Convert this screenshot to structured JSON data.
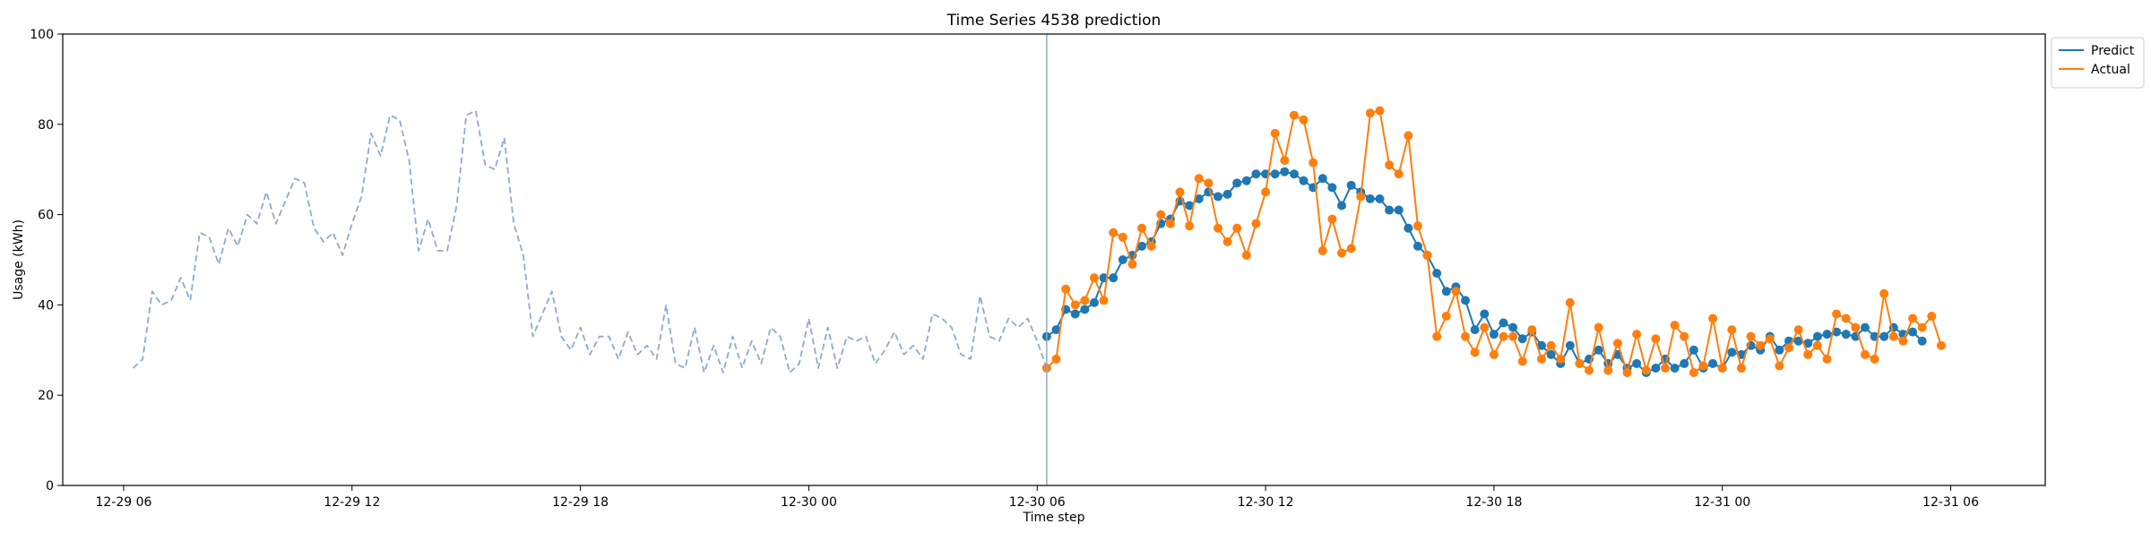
{
  "chart_data": {
    "type": "line",
    "title": "Time Series 4538 prediction",
    "xlabel": "Time step",
    "ylabel": "Usage (kWh)",
    "ylim": [
      0,
      100
    ],
    "yticks": [
      0,
      20,
      40,
      60,
      80,
      100
    ],
    "xlim": [
      "2023-12-29 04:24",
      "2023-12-31 08:29"
    ],
    "xticks": [
      {
        "t": "2023-12-29 06:00",
        "label": "12-29 06"
      },
      {
        "t": "2023-12-29 12:00",
        "label": "12-29 12"
      },
      {
        "t": "2023-12-29 18:00",
        "label": "12-29 18"
      },
      {
        "t": "2023-12-30 00:00",
        "label": "12-30 00"
      },
      {
        "t": "2023-12-30 06:00",
        "label": "12-30 06"
      },
      {
        "t": "2023-12-30 12:00",
        "label": "12-30 12"
      },
      {
        "t": "2023-12-30 18:00",
        "label": "12-30 18"
      },
      {
        "t": "2023-12-31 00:00",
        "label": "12-31 00"
      },
      {
        "t": "2023-12-31 06:00",
        "label": "12-31 06"
      }
    ],
    "interval_minutes": 15,
    "forecast_start": "2023-12-30 06:15",
    "grid": false,
    "legend_position": "top-right",
    "series": [
      {
        "style": "dashed",
        "color": "#8eaacc",
        "start": "2023-12-29 06:15",
        "values": [
          26,
          28,
          43,
          40,
          41,
          46,
          41,
          56,
          55,
          49,
          57,
          53,
          60,
          58,
          65,
          58,
          63,
          68,
          67,
          57,
          54,
          56,
          51,
          58,
          64,
          78,
          73,
          82,
          81,
          72,
          52,
          59,
          52,
          52,
          62,
          82,
          83,
          71,
          70,
          77,
          58,
          51,
          33,
          38,
          43,
          33,
          30,
          35,
          29,
          33,
          33,
          28,
          34,
          29,
          31,
          28,
          40,
          27,
          26,
          35,
          25,
          31,
          25,
          33,
          26,
          32,
          27,
          35,
          33,
          25,
          27,
          37,
          26,
          35,
          26,
          33,
          32,
          33,
          27,
          30,
          34,
          29,
          31,
          28,
          38,
          37,
          35,
          29,
          28,
          42,
          33,
          32,
          37,
          35,
          37,
          32,
          26
        ]
      },
      {
        "name": "Predict",
        "color": "#1f77b4",
        "start": "2023-12-30 06:15",
        "values": [
          33,
          34.5,
          39,
          38,
          39,
          40.5,
          46,
          46,
          50,
          51,
          53,
          54,
          58,
          59,
          63,
          62,
          63.5,
          65,
          64,
          64.5,
          67,
          67.5,
          69,
          69,
          69,
          69.5,
          69,
          67.5,
          66,
          68,
          66,
          62,
          66.5,
          65,
          63.5,
          63.5,
          61,
          61,
          57,
          53,
          51,
          47,
          43,
          44,
          41,
          34.5,
          38,
          33.5,
          36,
          35,
          32.5,
          34,
          31,
          29,
          27,
          31,
          27,
          28,
          30,
          27,
          29,
          26,
          27,
          25,
          26,
          28,
          26,
          27,
          30,
          26,
          27,
          26,
          29.5,
          29,
          31,
          30,
          33,
          30,
          32,
          32,
          31.5,
          33,
          33.5,
          34,
          33.5,
          33,
          35,
          33,
          33,
          35,
          33.5,
          34,
          32
        ]
      },
      {
        "name": "Actual",
        "color": "#ff7f0e",
        "start": "2023-12-30 06:15",
        "values": [
          26,
          28,
          43.5,
          40,
          41,
          46,
          41,
          56,
          55,
          49,
          57,
          53,
          60,
          58,
          65,
          57.5,
          68,
          67,
          57,
          54,
          57,
          51,
          58,
          65,
          78,
          72,
          82,
          81,
          71.5,
          52,
          59,
          51.5,
          52.5,
          64,
          82.5,
          83,
          71,
          69,
          77.5,
          57.5,
          51,
          33,
          37.5,
          43,
          33,
          29.5,
          35,
          29,
          33,
          33,
          27.5,
          34.5,
          28,
          31,
          28,
          40.5,
          27,
          25.5,
          35,
          25.5,
          31.5,
          25,
          33.5,
          25.5,
          32.5,
          26,
          35.5,
          33,
          25,
          26.5,
          37,
          26,
          34.5,
          26,
          33,
          31,
          32.5,
          26.5,
          30.5,
          34.5,
          29,
          31,
          28,
          38,
          37,
          35,
          29,
          28,
          42.5,
          33,
          32,
          37,
          35,
          37.5,
          31
        ]
      }
    ]
  }
}
